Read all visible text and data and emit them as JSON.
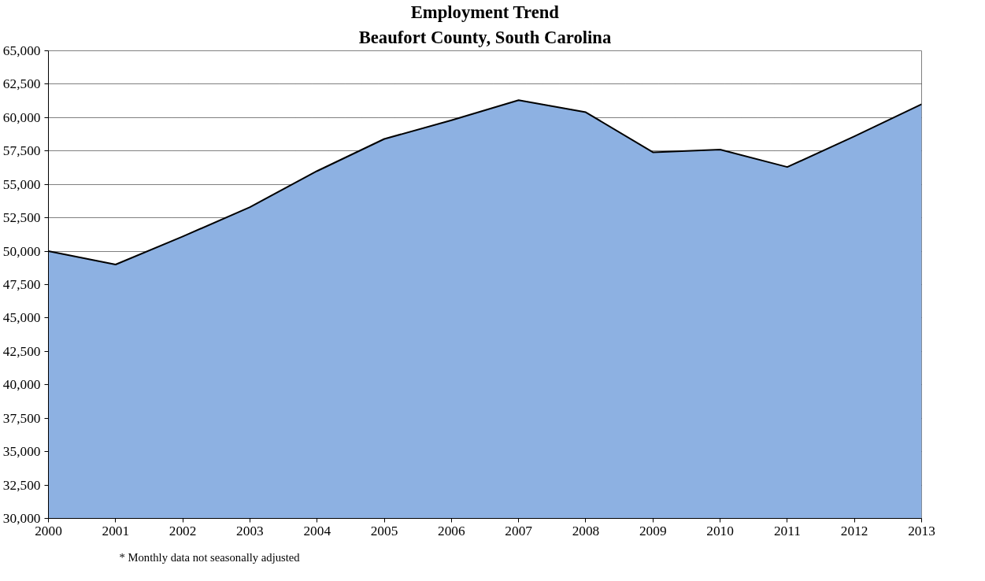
{
  "chart_data": {
    "type": "area",
    "title": "Employment Trend",
    "subtitle": "Beaufort County, South Carolina",
    "x": [
      2000,
      2001,
      2002,
      2003,
      2004,
      2005,
      2006,
      2007,
      2008,
      2009,
      2010,
      2011,
      2012,
      2013
    ],
    "series": [
      {
        "color": "#8db1e2",
        "values": [
          50000,
          49000,
          51100,
          53300,
          56000,
          58400,
          59800,
          61300,
          60400,
          57400,
          57600,
          56300,
          58600,
          61000
        ]
      }
    ],
    "xlim": [
      2000,
      2013
    ],
    "xticks": [
      2000,
      2001,
      2002,
      2003,
      2004,
      2005,
      2006,
      2007,
      2008,
      2009,
      2010,
      2011,
      2012,
      2013
    ],
    "ylim": [
      30000,
      65000
    ],
    "yticks": [
      {
        "value": 30000,
        "label": "30,000"
      },
      {
        "value": 32500,
        "label": "32,500"
      },
      {
        "value": 35000,
        "label": "35,000"
      },
      {
        "value": 37500,
        "label": "37,500"
      },
      {
        "value": 40000,
        "label": "40,000"
      },
      {
        "value": 42500,
        "label": "42,500"
      },
      {
        "value": 45000,
        "label": "45,000"
      },
      {
        "value": 47500,
        "label": "47,500"
      },
      {
        "value": 50000,
        "label": "50,000"
      },
      {
        "value": 52500,
        "label": "52,500"
      },
      {
        "value": 55000,
        "label": "55,000"
      },
      {
        "value": 57500,
        "label": "57,500"
      },
      {
        "value": 60000,
        "label": "60,000"
      },
      {
        "value": 62500,
        "label": "62,500"
      },
      {
        "value": 65000,
        "label": "65,000"
      }
    ],
    "grid": "y",
    "annotations": [
      "* Monthly data not seasonally adjusted"
    ]
  }
}
